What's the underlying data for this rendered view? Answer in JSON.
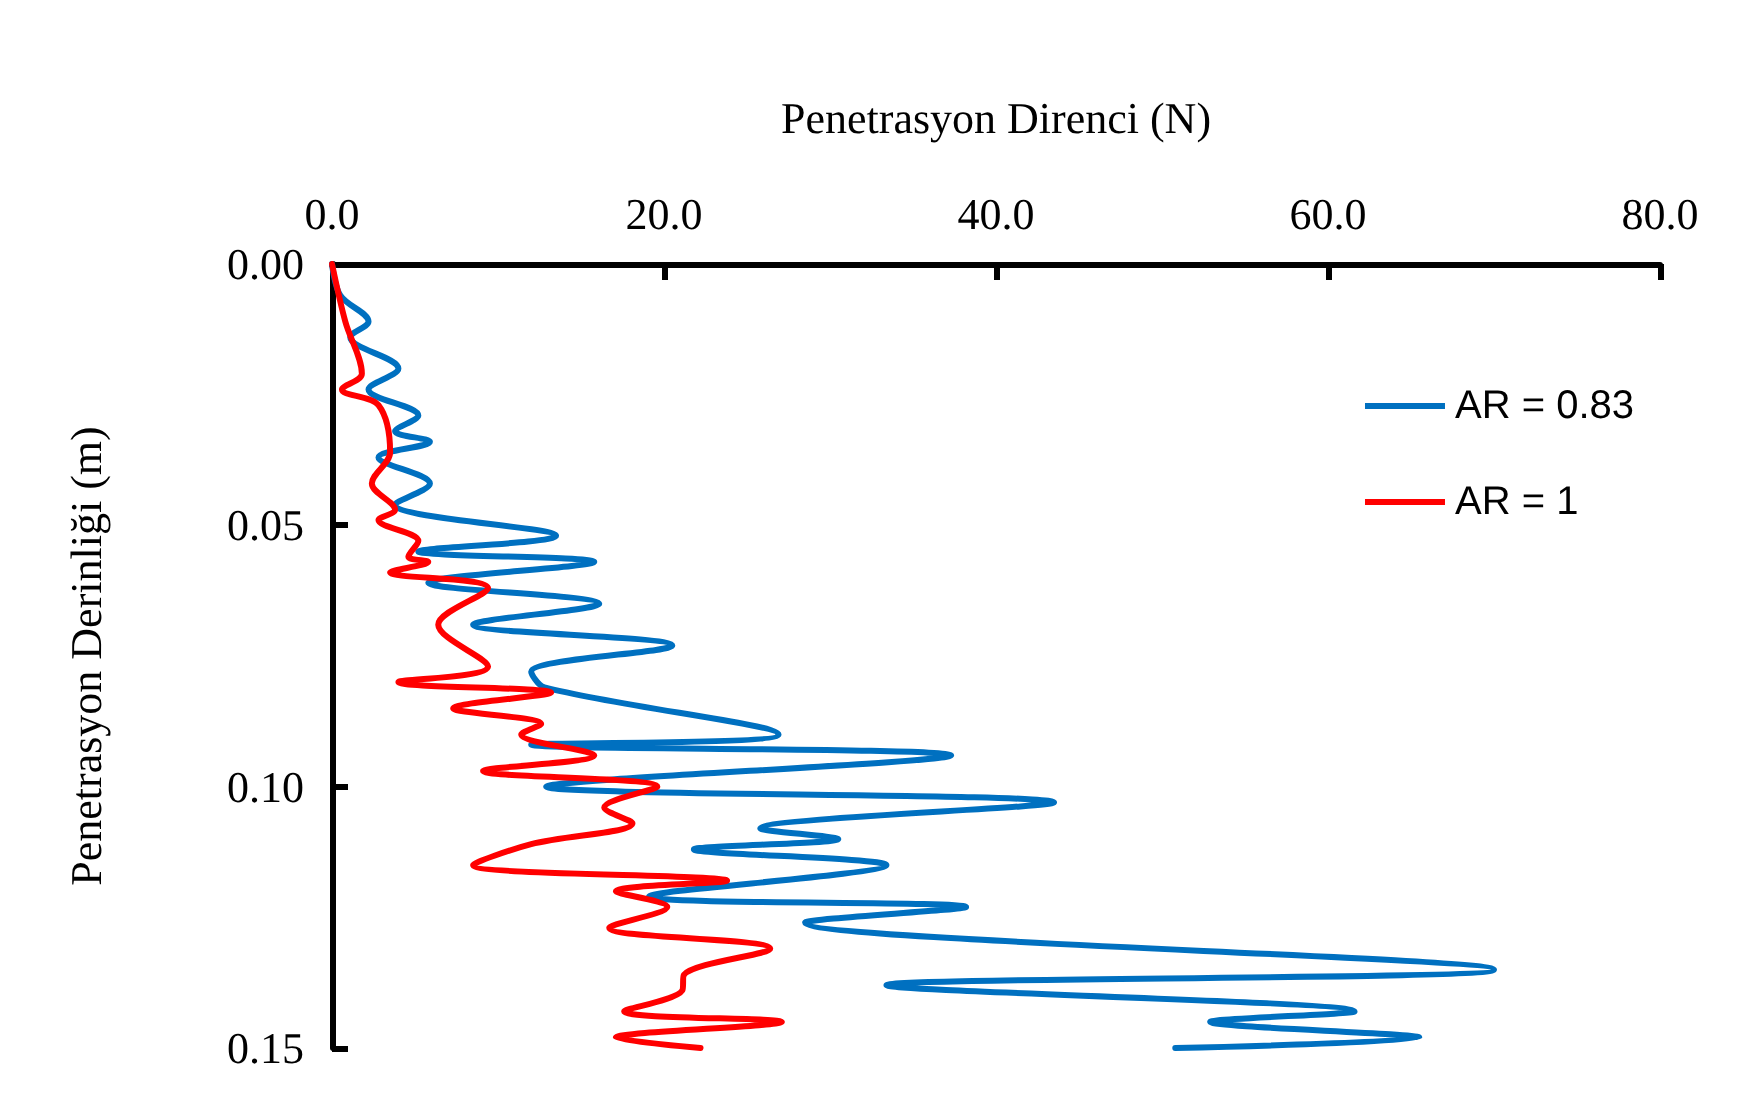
{
  "chart_data": {
    "type": "line",
    "xlabel": "Penetrasyon Direnci (N)",
    "ylabel": "Penetrasyon Derinliği (m)",
    "xlim": [
      0,
      80
    ],
    "xticks": [
      {
        "value": 0,
        "label": "0.0"
      },
      {
        "value": 20,
        "label": "20.0"
      },
      {
        "value": 40,
        "label": "40.0"
      },
      {
        "value": 60,
        "label": "60.0"
      },
      {
        "value": 80,
        "label": "80.0"
      }
    ],
    "ylim": [
      0.15,
      0
    ],
    "yticks": [
      {
        "value": 0,
        "label": "0.00"
      },
      {
        "value": 0.05,
        "label": "0.05"
      },
      {
        "value": 0.1,
        "label": "0.10"
      },
      {
        "value": 0.15,
        "label": "0.15"
      }
    ],
    "grid": false,
    "legend": "right",
    "marker": "none",
    "line_style": "solid",
    "series": [
      {
        "name": "AR = 0.83",
        "color": "#0070c0",
        "x": [
          0,
          0.5,
          2.2,
          1.1,
          4.0,
          2.2,
          5.2,
          3.8,
          5.9,
          2.8,
          5.9,
          3.8,
          13.5,
          5.2,
          15.8,
          5.8,
          16.1,
          8.5,
          20.5,
          12.0,
          12.8,
          26.9,
          12.0,
          37.3,
          12.9,
          43.5,
          25.8,
          30.5,
          21.8,
          33.4,
          19.1,
          38.2,
          28.5,
          70.0,
          33.4,
          61.6,
          52.9,
          65.5,
          50.8
        ],
        "values": [
          0,
          0.006,
          0.011,
          0.014,
          0.02,
          0.024,
          0.029,
          0.032,
          0.034,
          0.037,
          0.042,
          0.046,
          0.052,
          0.055,
          0.057,
          0.061,
          0.065,
          0.069,
          0.073,
          0.078,
          0.081,
          0.09,
          0.092,
          0.094,
          0.1,
          0.103,
          0.108,
          0.11,
          0.112,
          0.115,
          0.121,
          0.123,
          0.126,
          0.135,
          0.138,
          0.143,
          0.145,
          0.148,
          0.15
        ]
      },
      {
        "name": "AR = 1",
        "color": "#ff0000",
        "x": [
          0,
          0.8,
          1.8,
          0.6,
          2.8,
          3.5,
          2.4,
          3.8,
          2.8,
          5.2,
          4.6,
          5.8,
          3.5,
          9.4,
          6.4,
          9.4,
          4.0,
          13.2,
          7.3,
          12.6,
          11.4,
          15.8,
          9.1,
          19.6,
          16.4,
          18.1,
          12.0,
          8.5,
          23.8,
          17.1,
          20.2,
          16.7,
          26.4,
          21.2,
          21.1,
          17.6,
          27.1,
          17.1,
          22.2
        ],
        "values": [
          0,
          0.011,
          0.021,
          0.024,
          0.027,
          0.036,
          0.042,
          0.047,
          0.049,
          0.053,
          0.056,
          0.057,
          0.059,
          0.062,
          0.069,
          0.077,
          0.08,
          0.082,
          0.085,
          0.088,
          0.09,
          0.094,
          0.097,
          0.1,
          0.104,
          0.107,
          0.111,
          0.115,
          0.118,
          0.12,
          0.123,
          0.127,
          0.131,
          0.136,
          0.139,
          0.143,
          0.145,
          0.148,
          0.15
        ]
      }
    ]
  }
}
